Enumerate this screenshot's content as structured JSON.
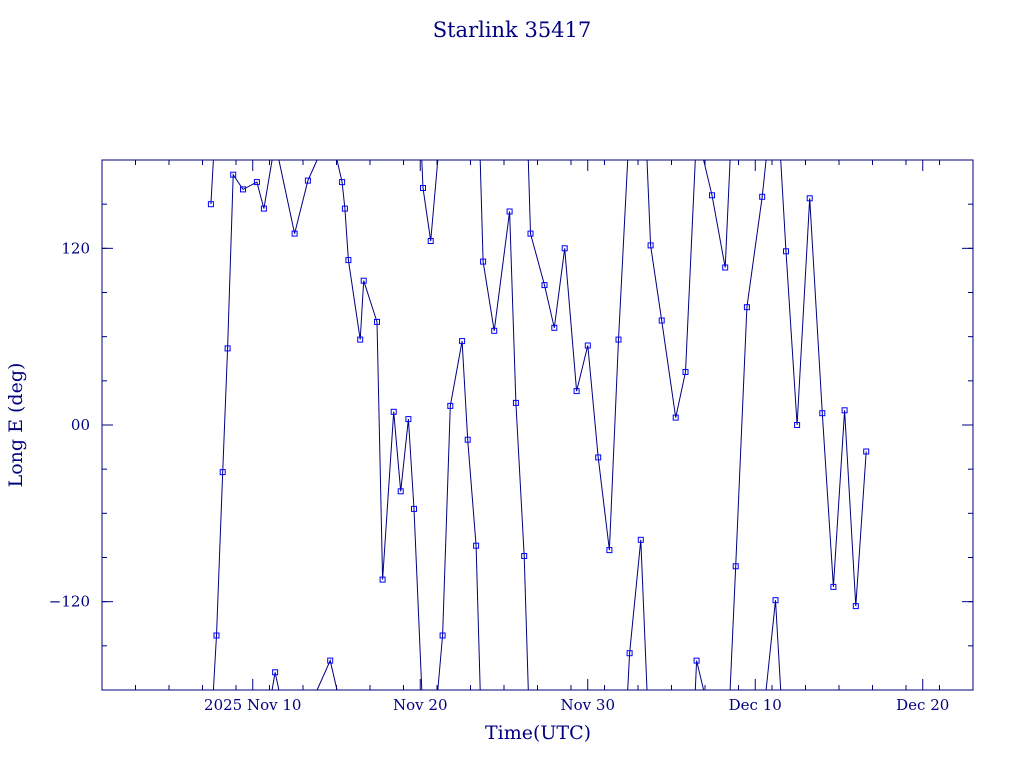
{
  "chart_data": {
    "type": "line",
    "title": "Starlink 35417",
    "xlabel": "Time(UTC)",
    "ylabel": "Long E (deg)",
    "xlim": [
      "2025-11-01",
      "2025-12-23"
    ],
    "ylim": [
      -180,
      180
    ],
    "grid": false,
    "x_ticks": [
      {
        "value": "2025-11-10",
        "label": "2025 Nov 10"
      },
      {
        "value": "2025-11-20",
        "label": "Nov 20"
      },
      {
        "value": "2025-11-30",
        "label": "Nov 30"
      },
      {
        "value": "2025-12-10",
        "label": "Dec 10"
      },
      {
        "value": "2025-12-20",
        "label": "Dec 20"
      }
    ],
    "y_ticks": [
      {
        "value": -120,
        "label": "−120"
      },
      {
        "value": 0,
        "label": "00"
      },
      {
        "value": 120,
        "label": "120"
      }
    ],
    "series": [
      {
        "x": [
          "2025-11-07T12:00",
          "2025-11-07T20:00",
          "2025-11-08T05:00",
          "2025-11-08T12:00",
          "2025-11-08T20:00",
          "2025-11-09T10:00",
          "2025-11-10T06:00",
          "2025-11-10T16:00",
          "2025-11-11T08:00",
          "2025-11-12T12:00",
          "2025-11-13T07:00",
          "2025-11-14T15:00",
          "2025-11-15T08:00",
          "2025-11-15T12:00",
          "2025-11-15T17:00",
          "2025-11-16T10:00",
          "2025-11-16T15:00",
          "2025-11-17T10:00",
          "2025-11-17T18:00",
          "2025-11-18T10:00",
          "2025-11-18T20:00",
          "2025-11-19T07:00",
          "2025-11-19T15:00",
          "2025-11-20T04:00",
          "2025-11-20T15:00",
          "2025-11-21T08:00",
          "2025-11-21T19:00",
          "2025-11-22T12:00",
          "2025-11-22T20:00",
          "2025-11-23T08:00",
          "2025-11-23T18:00",
          "2025-11-24T10:00",
          "2025-11-25T08:00",
          "2025-11-25T17:00",
          "2025-11-26T05:00",
          "2025-11-26T14:00",
          "2025-11-27T10:00",
          "2025-11-28T00:00",
          "2025-11-28T15:00",
          "2025-11-29T08:00",
          "2025-11-30T00:00",
          "2025-11-30T15:00",
          "2025-12-01T07:00",
          "2025-12-01T20:00",
          "2025-12-02T12:00",
          "2025-12-03T04:00",
          "2025-12-03T18:00",
          "2025-12-04T10:00",
          "2025-12-05T06:00",
          "2025-12-05T20:00",
          "2025-12-06T12:00",
          "2025-12-07T10:00",
          "2025-12-08T05:00",
          "2025-12-08T20:00",
          "2025-12-09T12:00",
          "2025-12-10T10:00",
          "2025-12-11T05:00",
          "2025-12-11T20:00",
          "2025-12-12T12:00",
          "2025-12-13T06:00",
          "2025-12-14T00:00",
          "2025-12-14T16:00",
          "2025-12-15T08:00",
          "2025-12-16T00:00",
          "2025-12-16T15:00"
        ],
        "y": [
          150,
          -143,
          -32,
          52,
          170,
          160,
          165,
          147,
          -168,
          130,
          166,
          -160,
          165,
          147,
          112,
          58,
          98,
          70,
          -105,
          9,
          -45,
          4,
          -57,
          161,
          125,
          -143,
          13,
          57,
          -10,
          -82,
          111,
          64,
          145,
          15,
          -89,
          130,
          95,
          66,
          120,
          23,
          54,
          -22,
          -85,
          58,
          -155,
          -78,
          122,
          71,
          5,
          36,
          -160,
          156,
          107,
          -96,
          80,
          155,
          -119,
          118,
          0,
          154,
          8,
          -110,
          10,
          -123,
          -18
        ]
      }
    ]
  }
}
